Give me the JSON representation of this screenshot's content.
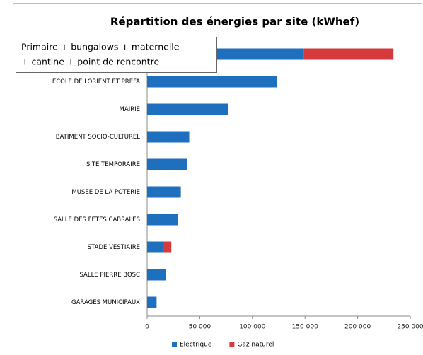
{
  "chart_data": {
    "type": "bar",
    "orientation": "horizontal",
    "stacked": true,
    "title": "Répartition des énergies par site (kWhef)",
    "annotation": [
      "Primaire + bungalows + maternelle",
      "+ cantine + point de rencontre"
    ],
    "categories": [
      null,
      "ECOLE DE LORIENT ET PREFA",
      "MAIRIE",
      "BATIMENT SOCIO-CULTUREL",
      "SITE TEMPORAIRE",
      "MUSEE DE LA POTERIE",
      "SALLE DES FETES CABRALES",
      "STADE VESTIAIRE",
      "SALLE PIERRE BOSC",
      "GARAGES MUNICIPAUX"
    ],
    "series": [
      {
        "name": "Electrique",
        "color": "#1f6fbf",
        "values": [
          149000,
          123000,
          77000,
          40000,
          38000,
          32000,
          29000,
          15000,
          18000,
          9000
        ]
      },
      {
        "name": "Gaz naturel",
        "color": "#d63a3c",
        "values": [
          85000,
          0,
          0,
          0,
          0,
          0,
          0,
          8000,
          0,
          0
        ]
      }
    ],
    "xlim": [
      0,
      250000
    ],
    "xticks": [
      0,
      {
        "value": 50000,
        "label": "50 000"
      },
      {
        "value": 100000,
        "label": "100 000"
      },
      {
        "value": 150000,
        "label": "150 000"
      },
      {
        "value": 200000,
        "label": "200 000"
      },
      {
        "value": 250000,
        "label": "250 000"
      }
    ],
    "legend": "bottom"
  }
}
